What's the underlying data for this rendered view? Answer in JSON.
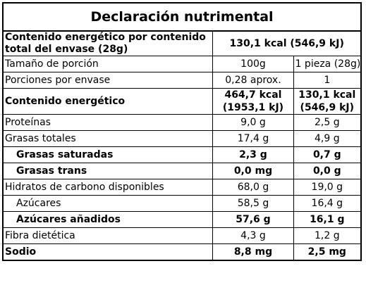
{
  "title": "Declaración nutrimental",
  "energy_total": {
    "label": "Contenido energético por contenido total del envase (28g)",
    "value": "130,1 kcal (546,9 kJ)"
  },
  "serving": {
    "label": "Tamaño de porción",
    "col_a": "100g",
    "col_b": "1 pieza (28g)"
  },
  "servings_per_pack": {
    "label": "Porciones por envase",
    "col_a": "0,28 aprox.",
    "col_b": "1"
  },
  "energy": {
    "label": "Contenido energético",
    "col_a": "464,7 kcal (1953,1 kJ)",
    "col_b": "130,1 kcal (546,9 kJ)"
  },
  "rows": [
    {
      "label": "Proteínas",
      "col_a": "9,0 g",
      "col_b": "2,5 g"
    },
    {
      "label": "Grasas totales",
      "col_a": "17,4 g",
      "col_b": "4,9 g"
    },
    {
      "label": "Grasas saturadas",
      "col_a": "2,3 g",
      "col_b": "0,7 g"
    },
    {
      "label": "Grasas trans",
      "col_a": "0,0 mg",
      "col_b": "0,0 g"
    },
    {
      "label": "Hidratos de carbono disponibles",
      "col_a": "68,0 g",
      "col_b": "19,0 g"
    },
    {
      "label": "Azúcares",
      "col_a": "58,5 g",
      "col_b": "16,4 g"
    },
    {
      "label": "Azúcares añadidos",
      "col_a": "57,6 g",
      "col_b": "16,1 g"
    },
    {
      "label": "Fibra dietética",
      "col_a": "4,3 g",
      "col_b": "1,2 g"
    },
    {
      "label": "Sodio",
      "col_a": "8,8 mg",
      "col_b": "2,5 mg"
    }
  ]
}
